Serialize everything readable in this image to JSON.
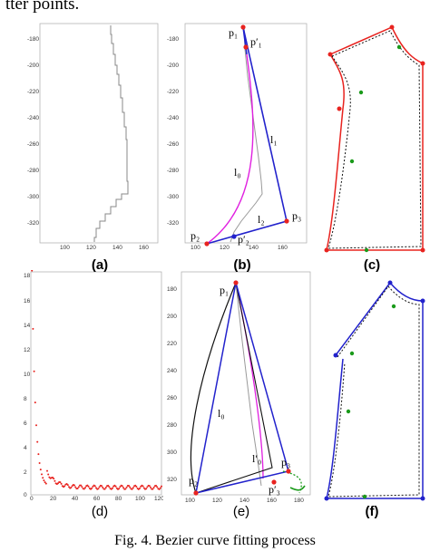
{
  "header_text": "tter points.",
  "caption": "Fig. 4. Bezier curve fitting process",
  "panel_labels": {
    "a": "(a)",
    "b": "(b)",
    "c": "(c)",
    "d": "(d)",
    "e": "(e)",
    "f": "(f)"
  },
  "panel_a": {
    "y_ticks": [
      "-180",
      "-200",
      "-220",
      "-240",
      "-260",
      "-280",
      "-300",
      "-320"
    ],
    "x_ticks": [
      "100",
      "120",
      "140",
      "160"
    ]
  },
  "panel_b": {
    "y_ticks": [
      "-180",
      "-200",
      "-220",
      "-240",
      "-260",
      "-280",
      "-300",
      "-320"
    ],
    "x_ticks": [
      "100",
      "120",
      "140",
      "160"
    ],
    "annotations": {
      "p1": "p₁",
      "p1p": "p′₁",
      "l1": "l₁",
      "l0": "l₀",
      "l2": "l₂",
      "p3": "p₃",
      "p2": "p₂",
      "p2p": "p′₂"
    }
  },
  "panel_d": {
    "y_ticks": [
      "18",
      "16",
      "14",
      "12",
      "10",
      "8",
      "6",
      "4",
      "2",
      "0"
    ],
    "x_ticks": [
      "0",
      "20",
      "40",
      "60",
      "80",
      "100",
      "120"
    ]
  },
  "panel_e": {
    "y_ticks": [
      "180",
      "200",
      "220",
      "240",
      "260",
      "280",
      "300",
      "320"
    ],
    "x_ticks": [
      "100",
      "120",
      "140",
      "160",
      "180"
    ],
    "annotations": {
      "p1": "p₁",
      "l0": "l₀",
      "l0p": "l′₀",
      "p3": "p₃",
      "p3p": "p′₃",
      "p2": "p₂"
    }
  },
  "colors": {
    "red": "#e8231f",
    "blue": "#2222cc",
    "magenta": "#e020e0",
    "green": "#1a9a1a",
    "gray": "#8a8a8a"
  }
}
